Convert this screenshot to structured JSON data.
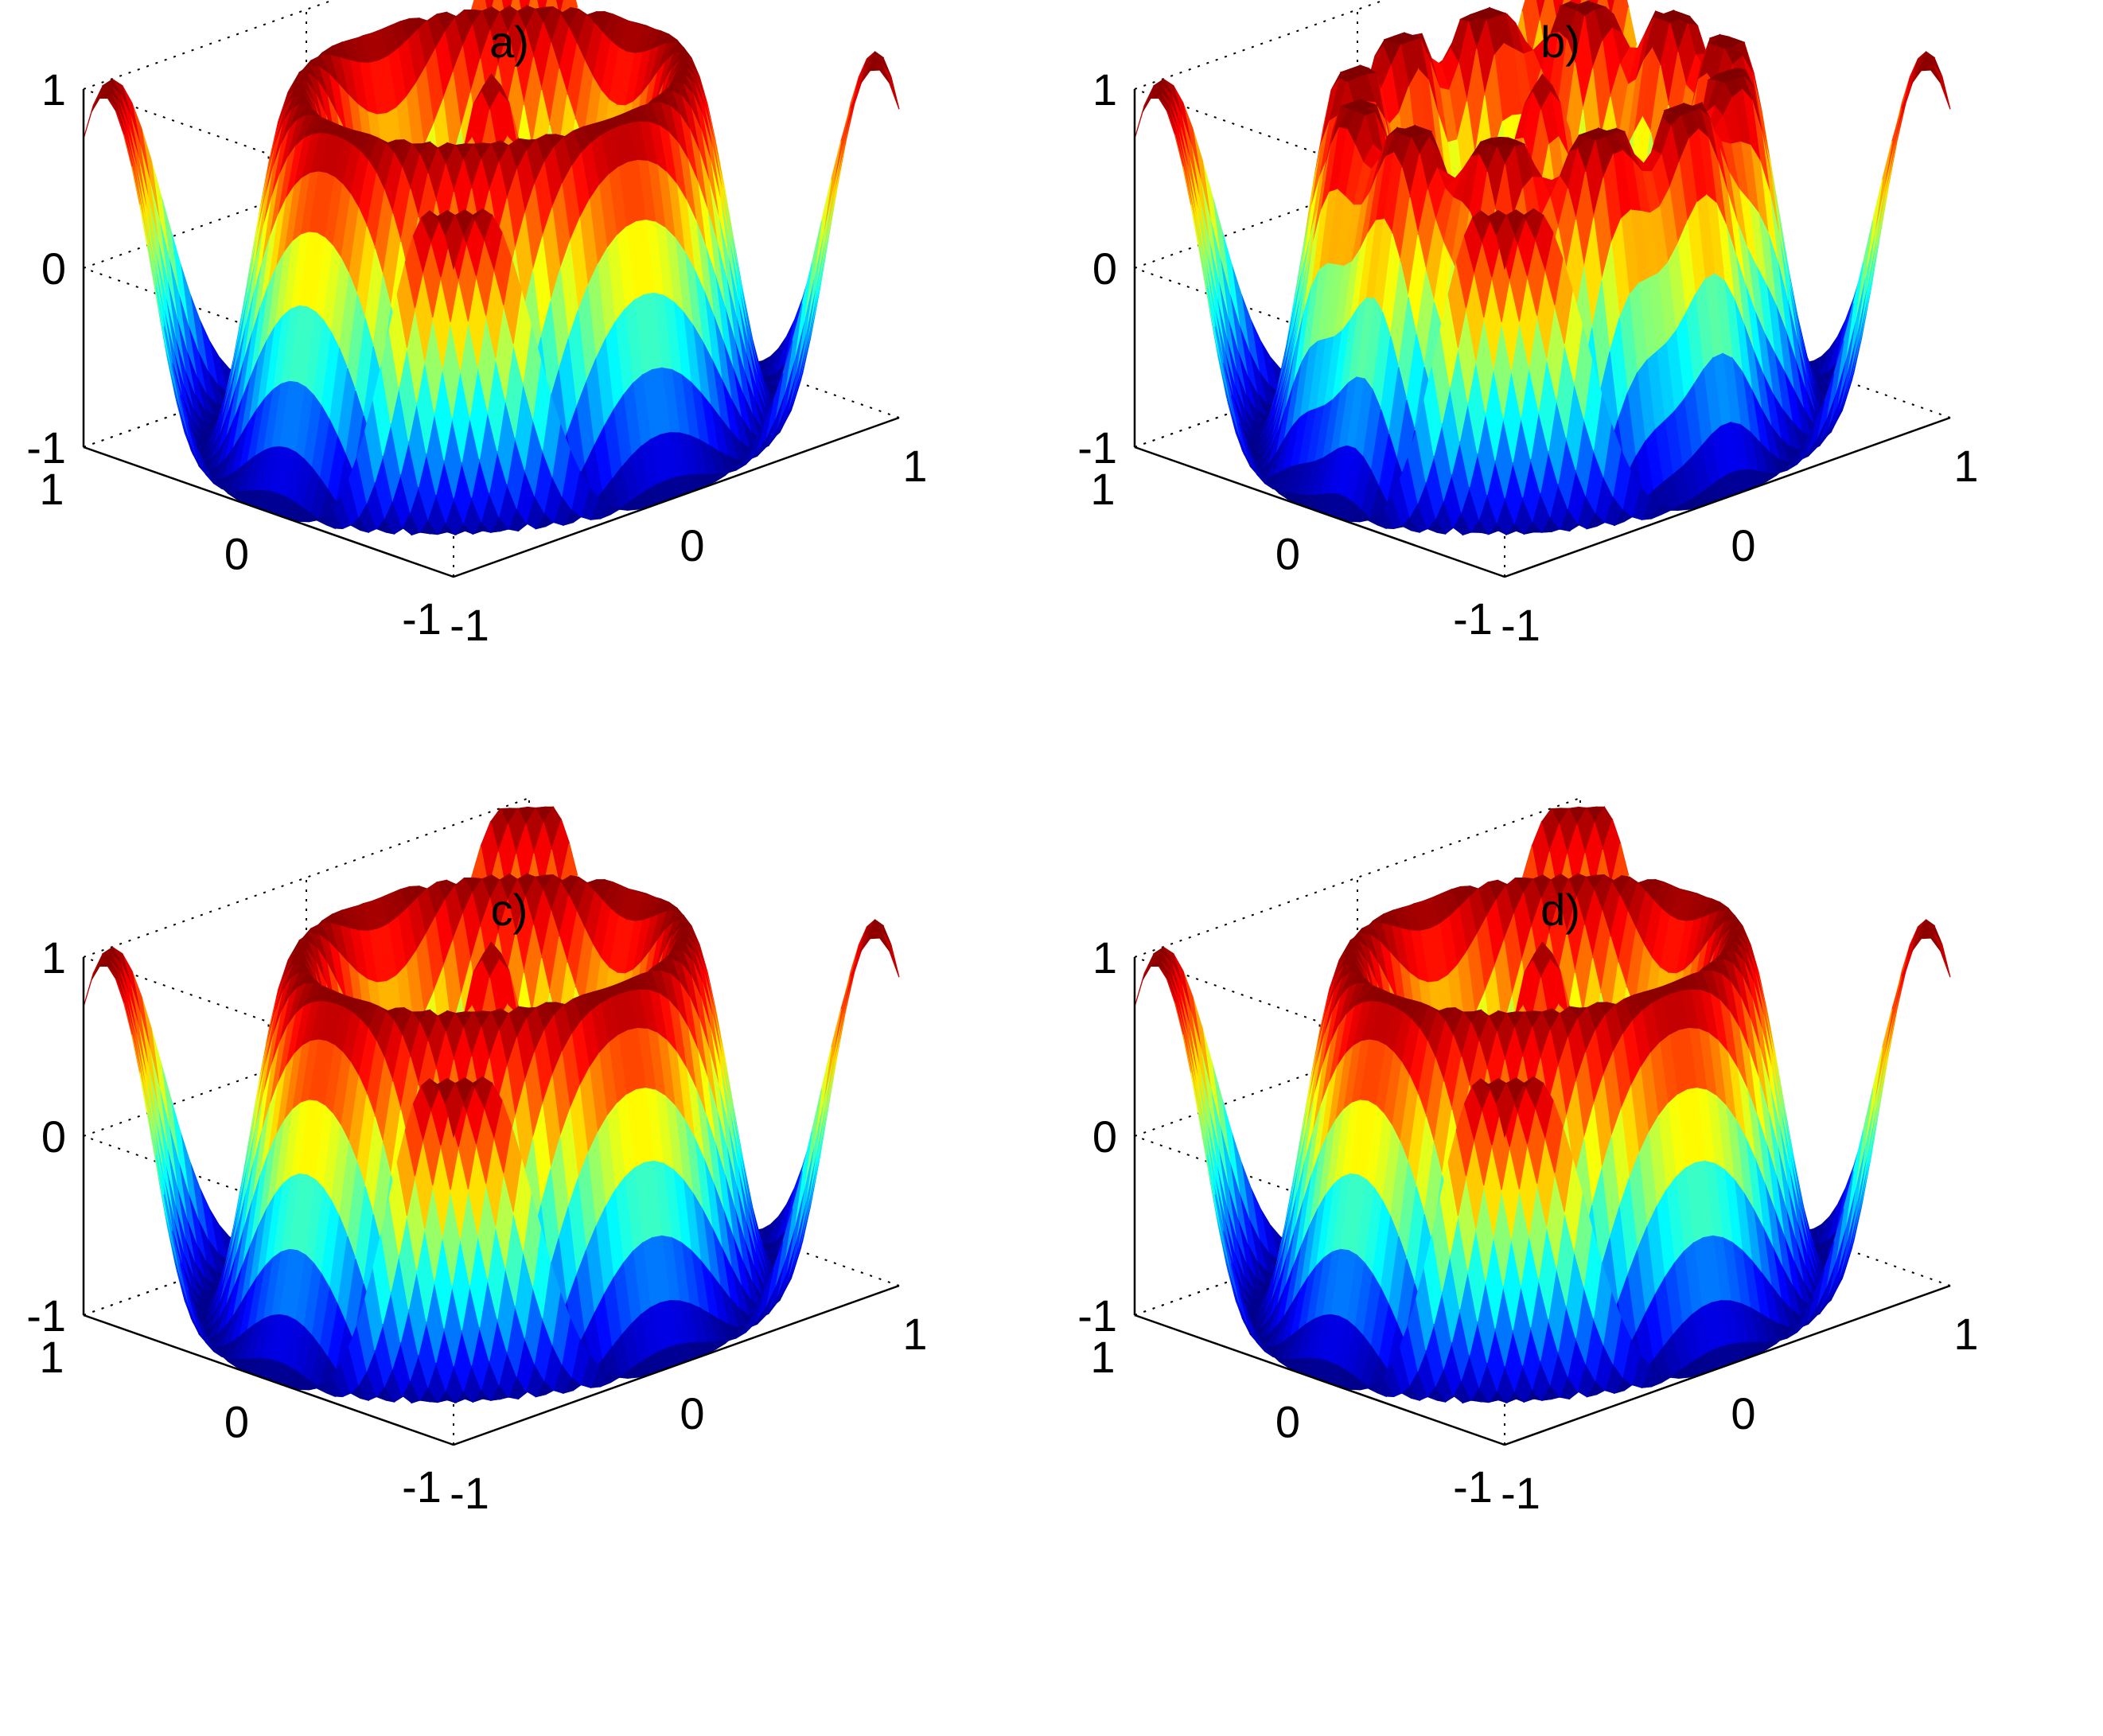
{
  "figure": {
    "colormap": "jet",
    "colormap_stops": [
      "#00008f",
      "#0000ff",
      "#00ffff",
      "#ffff00",
      "#ff0000",
      "#800000"
    ]
  },
  "chart_data": [
    {
      "type": "surface",
      "title": "a)",
      "xlim": [
        -1,
        1
      ],
      "ylim": [
        -1,
        1
      ],
      "zlim": [
        -1,
        1
      ],
      "x_ticks": [
        "-1",
        "0",
        "1"
      ],
      "y_ticks": [
        "-1",
        "0",
        "1"
      ],
      "z_ticks": [
        "-1",
        "0",
        "1"
      ],
      "grid": true,
      "shape": "radially symmetric ripple: z = cos(3·π·r)",
      "noise": 0
    },
    {
      "type": "surface",
      "title": "b)",
      "xlim": [
        -1,
        1
      ],
      "ylim": [
        -1,
        1
      ],
      "zlim": [
        -1,
        1
      ],
      "x_ticks": [
        "-1",
        "0",
        "1"
      ],
      "y_ticks": [
        "-1",
        "0",
        "1"
      ],
      "z_ticks": [
        "-1",
        "0",
        "1"
      ],
      "grid": true,
      "shape": "same ripple with angular oscillations",
      "noise": 0.25
    },
    {
      "type": "surface",
      "title": "c)",
      "xlim": [
        -1,
        1
      ],
      "ylim": [
        -1,
        1
      ],
      "zlim": [
        -1,
        1
      ],
      "x_ticks": [
        "-1",
        "0",
        "1"
      ],
      "y_ticks": [
        "-1",
        "0",
        "1"
      ],
      "z_ticks": [
        "-1",
        "0",
        "1"
      ],
      "grid": true,
      "shape": "radially symmetric ripple: z = cos(3·π·r)",
      "noise": 0
    },
    {
      "type": "surface",
      "title": "d)",
      "xlim": [
        -1,
        1
      ],
      "ylim": [
        -1,
        1
      ],
      "zlim": [
        -1,
        1
      ],
      "x_ticks": [
        "-1",
        "0",
        "1"
      ],
      "y_ticks": [
        "-1",
        "0",
        "1"
      ],
      "z_ticks": [
        "-1",
        "0",
        "1"
      ],
      "grid": true,
      "shape": "radially symmetric ripple: z = cos(3·π·r)",
      "noise": 0
    }
  ]
}
